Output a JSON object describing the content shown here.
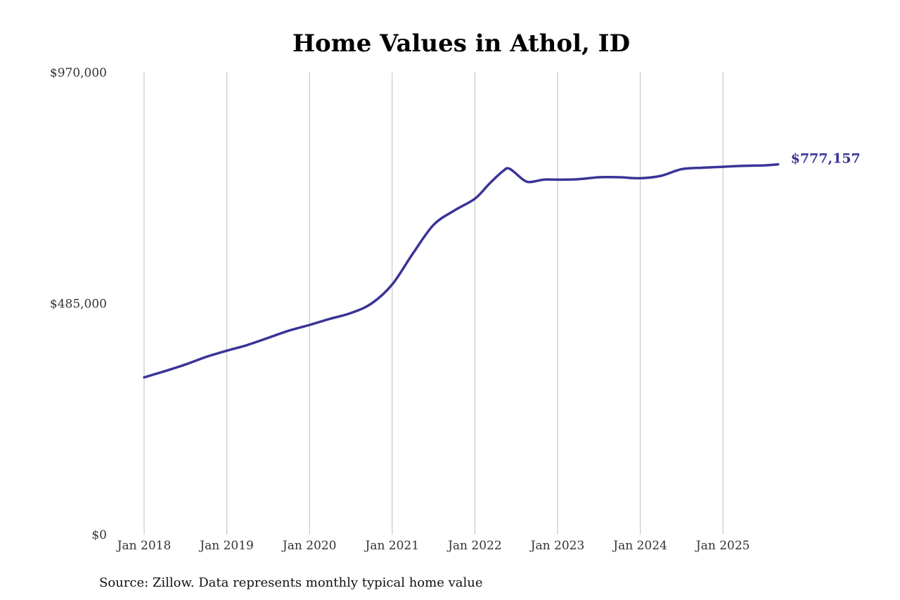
{
  "chart_data": {
    "type": "line",
    "title": "Home Values in Athol, ID",
    "xlabel": "",
    "ylabel": "",
    "source": "Source: Zillow. Data represents monthly typical home value",
    "ylim": [
      0,
      970000
    ],
    "y_ticks": [
      {
        "value": 0,
        "label": "$0"
      },
      {
        "value": 485000,
        "label": "$485,000"
      },
      {
        "value": 970000,
        "label": "$970,000"
      }
    ],
    "x_ticks": [
      "Jan 2018",
      "Jan 2019",
      "Jan 2020",
      "Jan 2021",
      "Jan 2022",
      "Jan 2023",
      "Jan 2024",
      "Jan 2025"
    ],
    "grid": "vertical",
    "line_color": "#3a3497",
    "end_label": "$777,157",
    "series": [
      {
        "x": [
          "2018-01",
          "2018-04",
          "2018-07",
          "2018-10",
          "2019-01",
          "2019-04",
          "2019-07",
          "2019-10",
          "2020-01",
          "2020-04",
          "2020-07",
          "2020-10",
          "2021-01",
          "2021-04",
          "2021-07",
          "2021-10",
          "2022-01",
          "2022-03",
          "2022-05",
          "2022-06",
          "2022-08",
          "2022-09",
          "2022-11",
          "2023-01",
          "2023-04",
          "2023-07",
          "2023-10",
          "2024-01",
          "2024-04",
          "2024-07",
          "2024-10",
          "2025-01",
          "2025-04",
          "2025-07",
          "2025-09"
        ],
        "values": [
          330000,
          343000,
          357000,
          373000,
          386000,
          398000,
          413000,
          428000,
          440000,
          453000,
          465000,
          485000,
          525000,
          590000,
          650000,
          680000,
          705000,
          735000,
          762000,
          768000,
          745000,
          740000,
          745000,
          745000,
          746000,
          750000,
          750000,
          748000,
          753000,
          767000,
          770000,
          772000,
          774000,
          775000,
          777157
        ]
      }
    ]
  }
}
